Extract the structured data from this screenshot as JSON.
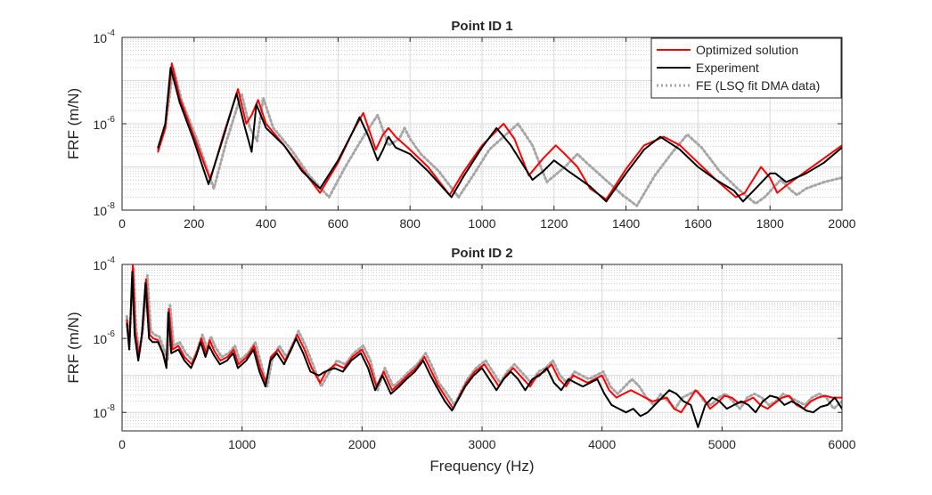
{
  "colors": {
    "optimized": "#ff0000",
    "experiment": "#000000",
    "fe": "#a6a6a6",
    "grid_major": "#d9d9d9",
    "grid_minor": "#bfbfbf",
    "axes": "#262626"
  },
  "chart_data": [
    {
      "type": "line",
      "title": "Point ID 1",
      "xlabel": "",
      "ylabel": "FRF (m/N)",
      "yscale": "log",
      "xlim": [
        0,
        2000
      ],
      "ylim_exp": [
        -8,
        -4
      ],
      "xticks": [
        0,
        200,
        400,
        600,
        800,
        1000,
        1200,
        1400,
        1600,
        1800,
        2000
      ],
      "xtick_labels": [
        "0",
        "200",
        "400",
        "600",
        "800",
        "1000",
        "1200",
        "1400",
        "1600",
        "1800",
        "2000"
      ],
      "ytick_exps": [
        -8,
        -6,
        -4
      ],
      "ytick_bases": [
        "10",
        "10",
        "10"
      ],
      "ytick_sups": [
        "-8",
        "-6",
        "-4"
      ],
      "grid": true,
      "legend": {
        "location": "top-right",
        "entries": [
          "Optimized solution",
          "Experiment",
          "FE (LSQ fit DMA data)"
        ]
      },
      "series": [
        {
          "name": "Optimized solution",
          "style": "solid",
          "x": [
            100,
            120,
            138,
            160,
            200,
            245,
            280,
            322,
            345,
            360,
            378,
            400,
            450,
            500,
            550,
            600,
            640,
            670,
            705,
            725,
            740,
            760,
            800,
            850,
            910,
            950,
            1000,
            1060,
            1090,
            1130,
            1170,
            1205,
            1230,
            1265,
            1300,
            1345,
            1400,
            1450,
            1505,
            1550,
            1600,
            1650,
            1705,
            1730,
            1775,
            1800,
            1820,
            1850,
            1900,
            1950,
            2000
          ],
          "y_log10": [
            -6.65,
            -6.1,
            -4.6,
            -5.4,
            -6.3,
            -7.3,
            -6.3,
            -5.2,
            -6.0,
            -5.8,
            -5.45,
            -6.0,
            -6.5,
            -7.05,
            -7.6,
            -6.9,
            -6.2,
            -5.75,
            -6.6,
            -6.25,
            -6.1,
            -6.3,
            -6.6,
            -7.0,
            -7.65,
            -7.1,
            -6.5,
            -6.0,
            -6.35,
            -7.2,
            -6.8,
            -6.5,
            -6.7,
            -7.0,
            -7.5,
            -7.75,
            -7.05,
            -6.5,
            -6.3,
            -6.5,
            -6.9,
            -7.3,
            -7.7,
            -7.6,
            -7.0,
            -7.25,
            -7.6,
            -7.4,
            -7.1,
            -6.8,
            -6.5
          ]
        },
        {
          "name": "Experiment",
          "style": "solid",
          "x": [
            100,
            120,
            135,
            160,
            200,
            240,
            280,
            318,
            340,
            360,
            373,
            400,
            450,
            500,
            550,
            600,
            640,
            660,
            685,
            710,
            725,
            740,
            760,
            800,
            850,
            915,
            950,
            1000,
            1040,
            1080,
            1140,
            1170,
            1200,
            1240,
            1300,
            1345,
            1400,
            1450,
            1495,
            1550,
            1600,
            1650,
            1700,
            1725,
            1760,
            1800,
            1815,
            1845,
            1900,
            1950,
            2000
          ],
          "y_log10": [
            -6.55,
            -6.0,
            -4.7,
            -5.5,
            -6.4,
            -7.4,
            -6.35,
            -5.3,
            -6.05,
            -6.65,
            -5.55,
            -6.1,
            -6.5,
            -7.1,
            -7.5,
            -6.85,
            -6.2,
            -5.85,
            -6.3,
            -6.85,
            -6.6,
            -6.3,
            -6.55,
            -6.7,
            -7.1,
            -7.7,
            -7.2,
            -6.55,
            -6.1,
            -6.5,
            -7.3,
            -7.1,
            -6.85,
            -7.1,
            -7.45,
            -7.8,
            -7.15,
            -6.6,
            -6.3,
            -6.6,
            -7.0,
            -7.3,
            -7.55,
            -7.8,
            -7.5,
            -7.15,
            -7.15,
            -7.35,
            -7.15,
            -6.9,
            -6.55
          ]
        },
        {
          "name": "FE (LSQ fit DMA data)",
          "style": "dotted",
          "x": [
            100,
            120,
            142,
            165,
            210,
            255,
            290,
            332,
            355,
            375,
            392,
            420,
            470,
            520,
            575,
            620,
            670,
            710,
            740,
            770,
            785,
            800,
            830,
            880,
            935,
            975,
            1020,
            1100,
            1140,
            1180,
            1230,
            1265,
            1290,
            1330,
            1390,
            1430,
            1480,
            1530,
            1570,
            1610,
            1660,
            1710,
            1760,
            1785,
            1830,
            1860,
            1875,
            1900,
            1950,
            2000
          ],
          "y_log10": [
            -6.6,
            -6.1,
            -4.7,
            -5.45,
            -6.4,
            -7.5,
            -6.4,
            -5.3,
            -6.1,
            -6.4,
            -5.4,
            -6.1,
            -6.6,
            -7.2,
            -7.7,
            -7.0,
            -6.3,
            -5.8,
            -6.5,
            -6.35,
            -6.1,
            -6.35,
            -6.7,
            -7.1,
            -7.7,
            -7.2,
            -6.6,
            -6.0,
            -6.5,
            -7.35,
            -7.0,
            -6.7,
            -6.9,
            -7.2,
            -7.65,
            -7.9,
            -7.2,
            -6.65,
            -6.25,
            -6.55,
            -7.1,
            -7.5,
            -7.85,
            -7.7,
            -7.3,
            -7.55,
            -7.65,
            -7.5,
            -7.35,
            -7.25
          ]
        }
      ]
    },
    {
      "type": "line",
      "title": "Point ID 2",
      "xlabel": "Frequency (Hz)",
      "ylabel": "FRF (m/N)",
      "yscale": "log",
      "xlim": [
        0,
        6000
      ],
      "ylim_exp": [
        -8.5,
        -4
      ],
      "xticks": [
        0,
        1000,
        2000,
        3000,
        4000,
        5000,
        6000
      ],
      "xtick_labels": [
        "0",
        "1000",
        "2000",
        "3000",
        "4000",
        "5000",
        "6000"
      ],
      "ytick_exps": [
        -8,
        -6,
        -4
      ],
      "ytick_bases": [
        "10",
        "10",
        "10"
      ],
      "ytick_sups": [
        "-8",
        "-6",
        "-4"
      ],
      "grid": true,
      "series": [
        {
          "name": "Optimized solution",
          "style": "solid",
          "x": [
            40,
            60,
            90,
            110,
            140,
            170,
            200,
            230,
            260,
            300,
            340,
            370,
            390,
            420,
            470,
            520,
            580,
            620,
            660,
            700,
            730,
            770,
            820,
            880,
            930,
            970,
            1040,
            1100,
            1150,
            1200,
            1240,
            1300,
            1360,
            1420,
            1460,
            1520,
            1580,
            1650,
            1700,
            1780,
            1850,
            1920,
            2000,
            2060,
            2120,
            2180,
            2250,
            2320,
            2380,
            2450,
            2520,
            2580,
            2630,
            2700,
            2760,
            2820,
            2870,
            2940,
            3020,
            3080,
            3140,
            3200,
            3260,
            3330,
            3400,
            3460,
            3520,
            3580,
            3640,
            3700,
            3760,
            3820,
            3880,
            3940,
            4000,
            4060,
            4120,
            4180,
            4240,
            4300,
            4360,
            4420,
            4480,
            4540,
            4600,
            4660,
            4720,
            4780,
            4840,
            4900,
            4960,
            5020,
            5080,
            5140,
            5200,
            5260,
            5320,
            5380,
            5440,
            5500,
            5560,
            5620,
            5680,
            5740,
            5800,
            5860,
            5920,
            6000
          ],
          "y_log10": [
            -5.5,
            -6.2,
            -4.0,
            -5.8,
            -6.5,
            -5.8,
            -4.4,
            -5.9,
            -6.0,
            -6.05,
            -6.4,
            -6.7,
            -5.2,
            -6.3,
            -6.2,
            -6.5,
            -6.7,
            -6.4,
            -6.0,
            -6.4,
            -6.05,
            -6.35,
            -6.6,
            -6.5,
            -6.3,
            -6.7,
            -6.5,
            -6.2,
            -6.8,
            -7.2,
            -6.5,
            -6.3,
            -6.6,
            -6.2,
            -5.9,
            -6.3,
            -6.8,
            -7.2,
            -6.9,
            -6.7,
            -6.8,
            -6.5,
            -6.3,
            -6.7,
            -7.3,
            -6.9,
            -7.4,
            -7.2,
            -7.0,
            -6.8,
            -6.5,
            -6.9,
            -7.25,
            -7.6,
            -7.9,
            -7.5,
            -7.2,
            -6.9,
            -6.7,
            -7.0,
            -7.3,
            -7.0,
            -6.8,
            -7.05,
            -7.3,
            -7.0,
            -6.9,
            -6.7,
            -7.1,
            -7.3,
            -7.0,
            -7.1,
            -7.2,
            -7.1,
            -7.0,
            -7.4,
            -7.6,
            -7.5,
            -7.4,
            -7.5,
            -7.6,
            -7.7,
            -7.65,
            -7.6,
            -7.9,
            -8.0,
            -7.7,
            -7.4,
            -7.6,
            -7.9,
            -7.75,
            -7.55,
            -7.6,
            -7.75,
            -7.7,
            -7.6,
            -7.8,
            -7.9,
            -7.75,
            -7.6,
            -7.55,
            -7.8,
            -7.9,
            -7.7,
            -7.6,
            -7.55,
            -7.6,
            -7.6
          ]
        },
        {
          "name": "Experiment",
          "style": "solid",
          "x": [
            40,
            60,
            85,
            105,
            135,
            165,
            195,
            225,
            255,
            300,
            340,
            370,
            385,
            410,
            470,
            520,
            575,
            615,
            655,
            695,
            725,
            765,
            815,
            875,
            925,
            965,
            1035,
            1095,
            1145,
            1195,
            1235,
            1290,
            1350,
            1410,
            1450,
            1510,
            1570,
            1640,
            1690,
            1770,
            1840,
            1910,
            1990,
            2050,
            2110,
            2170,
            2240,
            2310,
            2370,
            2440,
            2510,
            2570,
            2620,
            2690,
            2750,
            2810,
            2860,
            2930,
            3000,
            3060,
            3120,
            3180,
            3240,
            3300,
            3360,
            3420,
            3480,
            3540,
            3600,
            3660,
            3720,
            3780,
            3840,
            3900,
            3960,
            4020,
            4080,
            4140,
            4200,
            4260,
            4320,
            4380,
            4440,
            4500,
            4560,
            4620,
            4680,
            4740,
            4800,
            4860,
            4920,
            4980,
            5040,
            5100,
            5160,
            5220,
            5280,
            5340,
            5400,
            5460,
            5520,
            5580,
            5640,
            5700,
            5760,
            5820,
            5880,
            5940,
            6000
          ],
          "y_log10": [
            -5.6,
            -6.3,
            -4.2,
            -5.9,
            -6.6,
            -5.9,
            -4.5,
            -6.0,
            -6.1,
            -6.1,
            -6.4,
            -6.8,
            -5.3,
            -6.4,
            -6.3,
            -6.6,
            -6.8,
            -6.5,
            -6.1,
            -6.5,
            -6.2,
            -6.45,
            -6.7,
            -6.6,
            -6.4,
            -6.8,
            -6.6,
            -6.3,
            -6.9,
            -7.3,
            -6.6,
            -6.4,
            -6.7,
            -6.3,
            -6.0,
            -6.4,
            -6.9,
            -7.0,
            -6.9,
            -6.8,
            -6.9,
            -6.6,
            -6.4,
            -6.8,
            -7.4,
            -7.0,
            -7.5,
            -7.3,
            -7.1,
            -6.9,
            -6.6,
            -7.0,
            -7.3,
            -7.7,
            -7.95,
            -7.6,
            -7.3,
            -7.0,
            -6.8,
            -7.1,
            -7.4,
            -7.1,
            -6.9,
            -7.1,
            -7.4,
            -7.1,
            -7.0,
            -6.8,
            -7.2,
            -7.4,
            -7.1,
            -7.2,
            -7.3,
            -7.2,
            -7.1,
            -7.5,
            -7.8,
            -7.9,
            -8.0,
            -7.9,
            -8.1,
            -8.0,
            -7.8,
            -7.6,
            -7.4,
            -7.5,
            -7.7,
            -7.8,
            -8.4,
            -7.8,
            -7.6,
            -7.7,
            -7.9,
            -7.8,
            -7.7,
            -7.8,
            -8.0,
            -7.7,
            -7.55,
            -7.6,
            -7.8,
            -7.7,
            -7.8,
            -7.95,
            -8.0,
            -7.85,
            -7.8,
            -7.6,
            -7.9
          ]
        },
        {
          "name": "FE (LSQ fit DMA data)",
          "style": "dotted",
          "x": [
            40,
            60,
            95,
            115,
            145,
            175,
            210,
            240,
            270,
            310,
            350,
            380,
            400,
            430,
            480,
            530,
            590,
            630,
            670,
            710,
            740,
            780,
            830,
            890,
            940,
            980,
            1050,
            1110,
            1160,
            1210,
            1250,
            1310,
            1370,
            1430,
            1470,
            1530,
            1590,
            1660,
            1710,
            1790,
            1860,
            1930,
            2010,
            2070,
            2130,
            2190,
            2260,
            2330,
            2390,
            2460,
            2530,
            2590,
            2640,
            2710,
            2770,
            2830,
            2880,
            2950,
            3030,
            3090,
            3150,
            3210,
            3270,
            3340,
            3410,
            3470,
            3530,
            3590,
            3650,
            3710,
            3770,
            3830,
            3890,
            3950,
            4010,
            4070,
            4130,
            4190,
            4250,
            4310,
            4370,
            4430,
            4490,
            4550,
            4610,
            4670,
            4730,
            4790,
            4850,
            4910,
            4970,
            5030,
            5090,
            5150,
            5210,
            5270,
            5330,
            5390,
            5450,
            5510,
            5570,
            5630,
            5690,
            5750,
            5810,
            5870,
            5930,
            6000
          ],
          "y_log10": [
            -5.4,
            -6.1,
            -4.1,
            -5.7,
            -6.4,
            -5.7,
            -4.3,
            -5.8,
            -5.9,
            -5.95,
            -6.3,
            -6.6,
            -5.1,
            -6.2,
            -6.1,
            -6.4,
            -6.6,
            -6.3,
            -5.9,
            -6.3,
            -5.95,
            -6.25,
            -6.5,
            -6.4,
            -6.2,
            -6.6,
            -6.4,
            -6.1,
            -6.7,
            -7.3,
            -6.6,
            -6.2,
            -6.5,
            -6.1,
            -5.8,
            -6.2,
            -6.7,
            -7.3,
            -7.0,
            -6.6,
            -6.7,
            -6.4,
            -6.2,
            -6.6,
            -7.4,
            -6.8,
            -7.3,
            -7.1,
            -6.9,
            -6.7,
            -6.4,
            -6.8,
            -7.2,
            -7.5,
            -7.8,
            -7.4,
            -7.1,
            -6.8,
            -6.6,
            -6.9,
            -7.2,
            -6.9,
            -6.7,
            -6.95,
            -7.2,
            -6.9,
            -6.8,
            -6.6,
            -7.0,
            -7.2,
            -6.9,
            -7.0,
            -7.1,
            -7.0,
            -6.9,
            -7.3,
            -7.5,
            -7.3,
            -7.1,
            -7.3,
            -7.6,
            -7.8,
            -7.5,
            -7.7,
            -7.9,
            -7.6,
            -7.5,
            -7.4,
            -7.7,
            -7.8,
            -7.6,
            -7.5,
            -7.7,
            -7.9,
            -7.6,
            -7.5,
            -7.6,
            -7.8,
            -7.7,
            -7.5,
            -7.6,
            -7.7,
            -7.8,
            -7.6,
            -7.5,
            -7.6,
            -7.9,
            -7.7
          ]
        }
      ]
    }
  ]
}
